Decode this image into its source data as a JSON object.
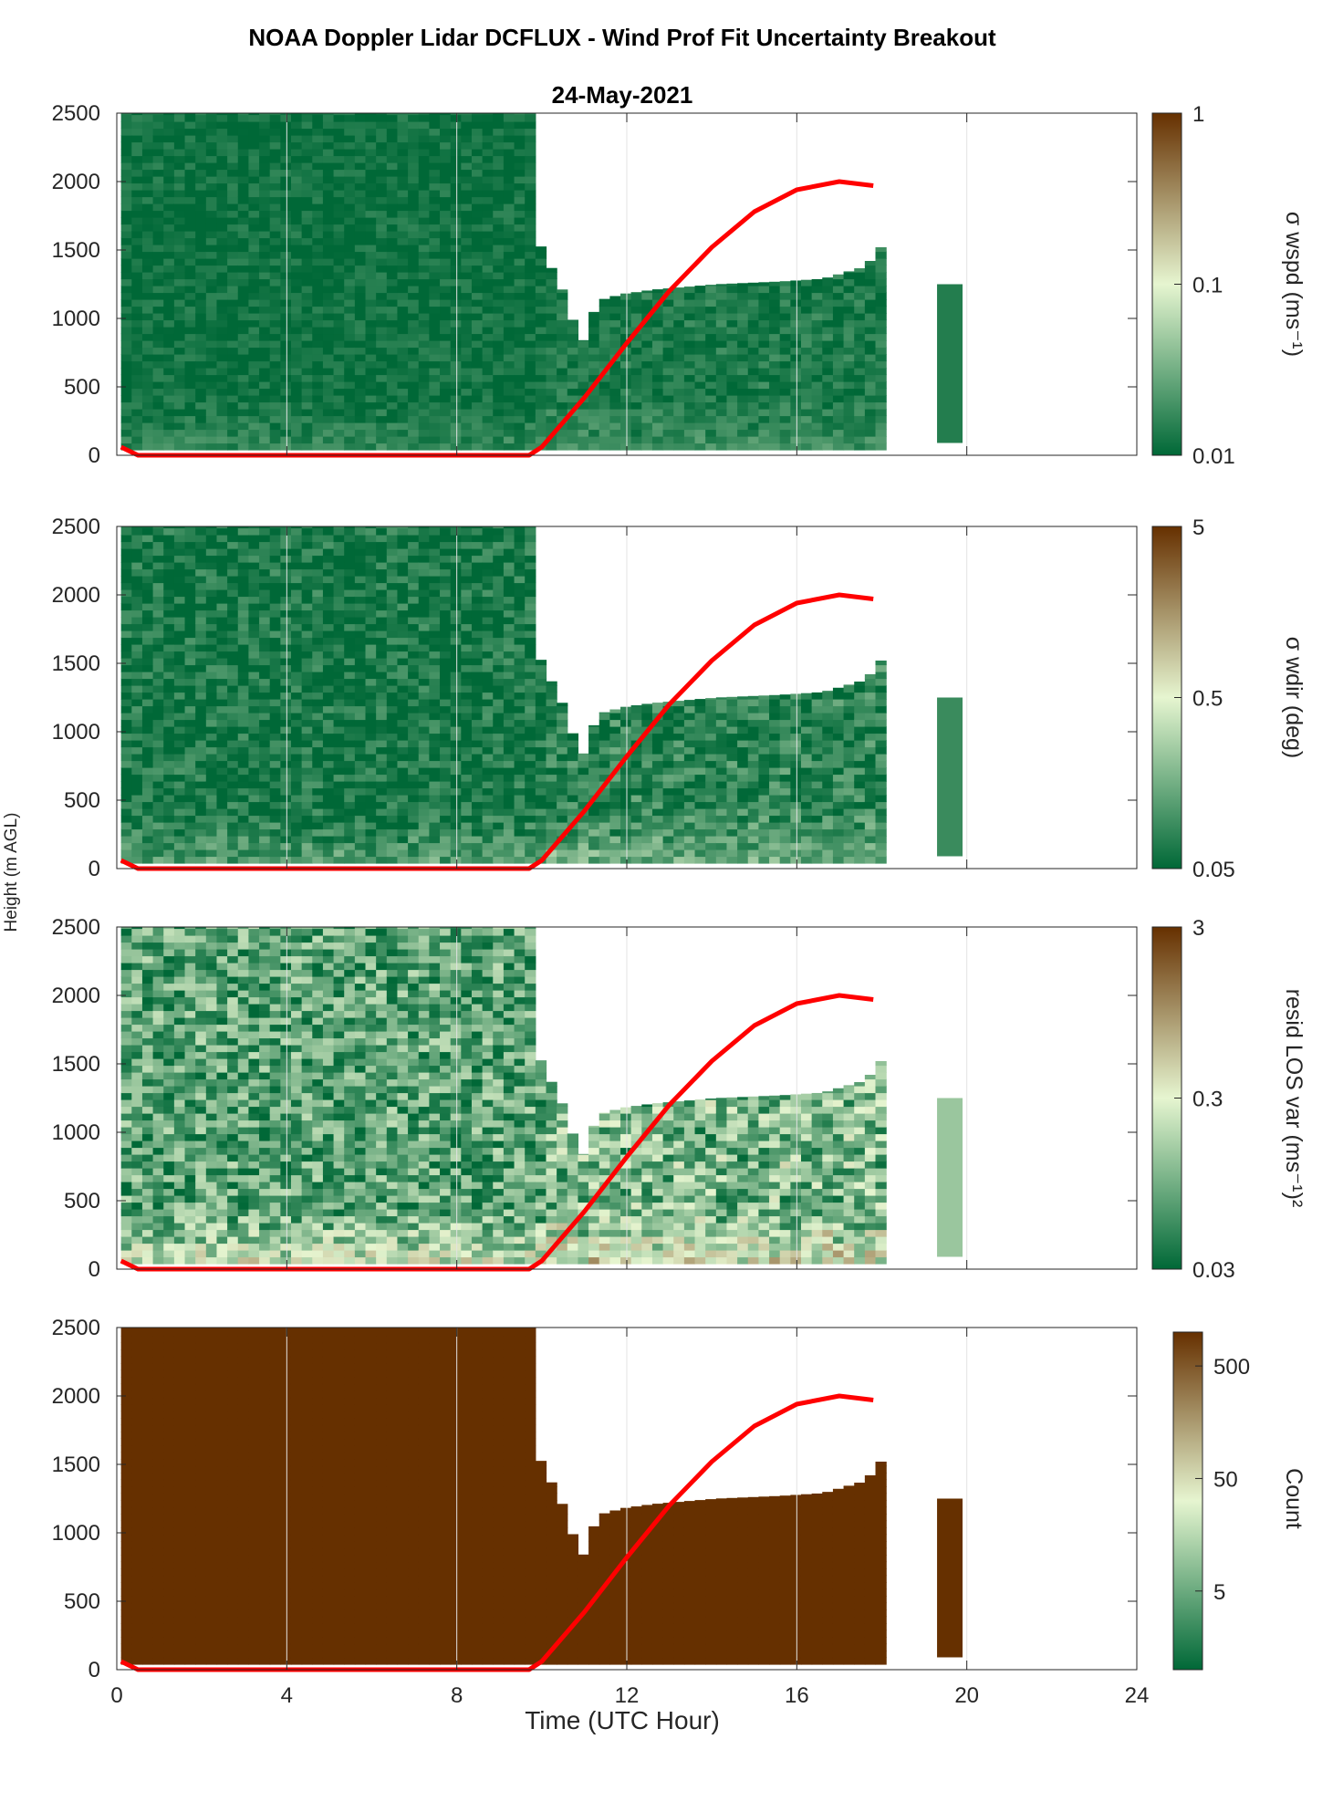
{
  "figure": {
    "title": "NOAA Doppler Lidar DCFLUX - Wind Prof Fit Uncertainty Breakout",
    "subtitle": "24-May-2021",
    "ylabel": "Height (m AGL)",
    "xlabel": "Time (UTC Hour)"
  },
  "chart_data": [
    {
      "type": "heatmap",
      "name": "wspd",
      "colorbar_label": "σ wspd (ms⁻¹)",
      "colorbar_ticks": [
        "0.01",
        "0.1",
        "1"
      ],
      "colorbar_scale": "log",
      "clim": [
        0.01,
        1
      ],
      "x_range": [
        0,
        24
      ],
      "y_range": [
        0,
        2500
      ],
      "x_ticks": [
        0,
        4,
        8,
        12,
        16,
        20,
        24
      ],
      "x_tick_labels": [
        "0",
        "4",
        "8",
        "12",
        "16",
        "20",
        "24"
      ],
      "y_ticks": [
        0,
        500,
        1000,
        1500,
        2000,
        2500
      ],
      "y_tick_labels": [
        "0",
        "500",
        "1000",
        "1500",
        "2000",
        "2500"
      ],
      "grid": "x",
      "field_level": 0.03,
      "texture": 0.15
    },
    {
      "type": "heatmap",
      "name": "wdir",
      "colorbar_label": "σ wdir (deg)",
      "colorbar_ticks": [
        "0.05",
        "0.5",
        "5"
      ],
      "colorbar_scale": "log",
      "clim": [
        0.05,
        5
      ],
      "x_range": [
        0,
        24
      ],
      "y_range": [
        0,
        2500
      ],
      "x_ticks": [
        0,
        4,
        8,
        12,
        16,
        20,
        24
      ],
      "x_tick_labels": [
        "0",
        "4",
        "8",
        "12",
        "16",
        "20",
        "24"
      ],
      "y_ticks": [
        0,
        500,
        1000,
        1500,
        2000,
        2500
      ],
      "y_tick_labels": [
        "0",
        "500",
        "1000",
        "1500",
        "2000",
        "2500"
      ],
      "grid": "x",
      "field_level": 0.05,
      "texture": 0.25
    },
    {
      "type": "heatmap",
      "name": "resid",
      "colorbar_label": "resid LOS var (ms⁻¹)²",
      "colorbar_ticks": [
        "0.03",
        "0.3",
        "3"
      ],
      "colorbar_scale": "log",
      "clim": [
        0.03,
        3
      ],
      "x_range": [
        0,
        24
      ],
      "y_range": [
        0,
        2500
      ],
      "x_ticks": [
        0,
        4,
        8,
        12,
        16,
        20,
        24
      ],
      "x_tick_labels": [
        "0",
        "4",
        "8",
        "12",
        "16",
        "20",
        "24"
      ],
      "y_ticks": [
        0,
        500,
        1000,
        1500,
        2000,
        2500
      ],
      "y_tick_labels": [
        "0",
        "500",
        "1000",
        "1500",
        "2000",
        "2500"
      ],
      "grid": "x",
      "field_level": 0.2,
      "texture": 0.45
    },
    {
      "type": "heatmap",
      "name": "count",
      "colorbar_label": "Count",
      "colorbar_ticks": [
        "5",
        "50",
        "500"
      ],
      "colorbar_scale": "log",
      "clim": [
        1,
        1000
      ],
      "x_range": [
        0,
        24
      ],
      "y_range": [
        0,
        2500
      ],
      "x_ticks": [
        0,
        4,
        8,
        12,
        16,
        20,
        24
      ],
      "x_tick_labels": [
        "0",
        "4",
        "8",
        "12",
        "16",
        "20",
        "24"
      ],
      "y_ticks": [
        0,
        500,
        1000,
        1500,
        2000,
        2500
      ],
      "y_tick_labels": [
        "0",
        "500",
        "1000",
        "1500",
        "2000",
        "2500"
      ],
      "grid": "x",
      "field_level": 1.0,
      "texture": 0.0
    }
  ],
  "data_coverage": {
    "full_column": {
      "x": [
        0.1,
        9.7
      ],
      "y": [
        40,
        2500
      ]
    },
    "afternoon_tops": [
      {
        "x": 9.7,
        "top": 1620
      },
      {
        "x": 10.4,
        "top": 1180
      },
      {
        "x": 10.8,
        "top": 800
      },
      {
        "x": 11.2,
        "top": 1130
      },
      {
        "x": 11.8,
        "top": 1180
      },
      {
        "x": 12.5,
        "top": 1210
      },
      {
        "x": 14.0,
        "top": 1250
      },
      {
        "x": 15.5,
        "top": 1270
      },
      {
        "x": 16.5,
        "top": 1290
      },
      {
        "x": 17.5,
        "top": 1380
      },
      {
        "x": 18.0,
        "top": 1580
      }
    ],
    "late_block": {
      "x": [
        19.3,
        19.9
      ],
      "y": [
        90,
        1250
      ]
    },
    "colors": {
      "low": "#006837",
      "mid": "#e6f5d0",
      "high": "#663000",
      "bl_line": "#ff0000"
    }
  },
  "boundary_layer_height": {
    "x": [
      0.1,
      0.5,
      9.7,
      10.0,
      11.0,
      12.0,
      13.0,
      14.0,
      15.0,
      16.0,
      17.0,
      17.8
    ],
    "y": [
      60,
      0,
      0,
      60,
      420,
      820,
      1200,
      1520,
      1780,
      1940,
      2000,
      1970
    ]
  }
}
